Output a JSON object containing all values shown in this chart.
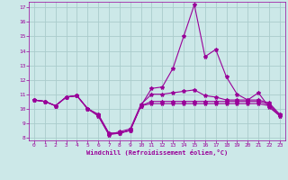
{
  "xlabel": "Windchill (Refroidissement éolien,°C)",
  "background_color": "#cce8e8",
  "grid_color": "#aacccc",
  "line_color": "#990099",
  "marker": "*",
  "xlim": [
    -0.5,
    23.5
  ],
  "ylim": [
    7.8,
    17.4
  ],
  "xticks": [
    0,
    1,
    2,
    3,
    4,
    5,
    6,
    7,
    8,
    9,
    10,
    11,
    12,
    13,
    14,
    15,
    16,
    17,
    18,
    19,
    20,
    21,
    22,
    23
  ],
  "yticks": [
    8,
    9,
    10,
    11,
    12,
    13,
    14,
    15,
    16,
    17
  ],
  "line1": [
    10.6,
    10.5,
    10.2,
    10.8,
    10.9,
    10.0,
    9.5,
    8.2,
    8.3,
    8.5,
    10.2,
    11.4,
    11.5,
    12.8,
    15.0,
    17.2,
    13.6,
    14.1,
    12.2,
    11.0,
    10.6,
    11.1,
    10.1,
    9.5
  ],
  "line2": [
    10.6,
    10.5,
    10.2,
    10.8,
    10.9,
    10.0,
    9.5,
    8.2,
    8.4,
    8.6,
    10.3,
    11.0,
    11.0,
    11.1,
    11.2,
    11.3,
    10.9,
    10.8,
    10.6,
    10.6,
    10.6,
    10.6,
    10.4,
    9.6
  ],
  "line3": [
    10.6,
    10.5,
    10.2,
    10.8,
    10.9,
    10.0,
    9.6,
    8.3,
    8.3,
    8.5,
    10.2,
    10.5,
    10.5,
    10.5,
    10.5,
    10.5,
    10.5,
    10.5,
    10.5,
    10.5,
    10.5,
    10.5,
    10.3,
    9.6
  ],
  "line4": [
    10.6,
    10.5,
    10.2,
    10.8,
    10.9,
    10.0,
    9.6,
    8.3,
    8.3,
    8.5,
    10.2,
    10.35,
    10.35,
    10.35,
    10.35,
    10.35,
    10.35,
    10.35,
    10.35,
    10.35,
    10.35,
    10.35,
    10.2,
    9.5
  ]
}
